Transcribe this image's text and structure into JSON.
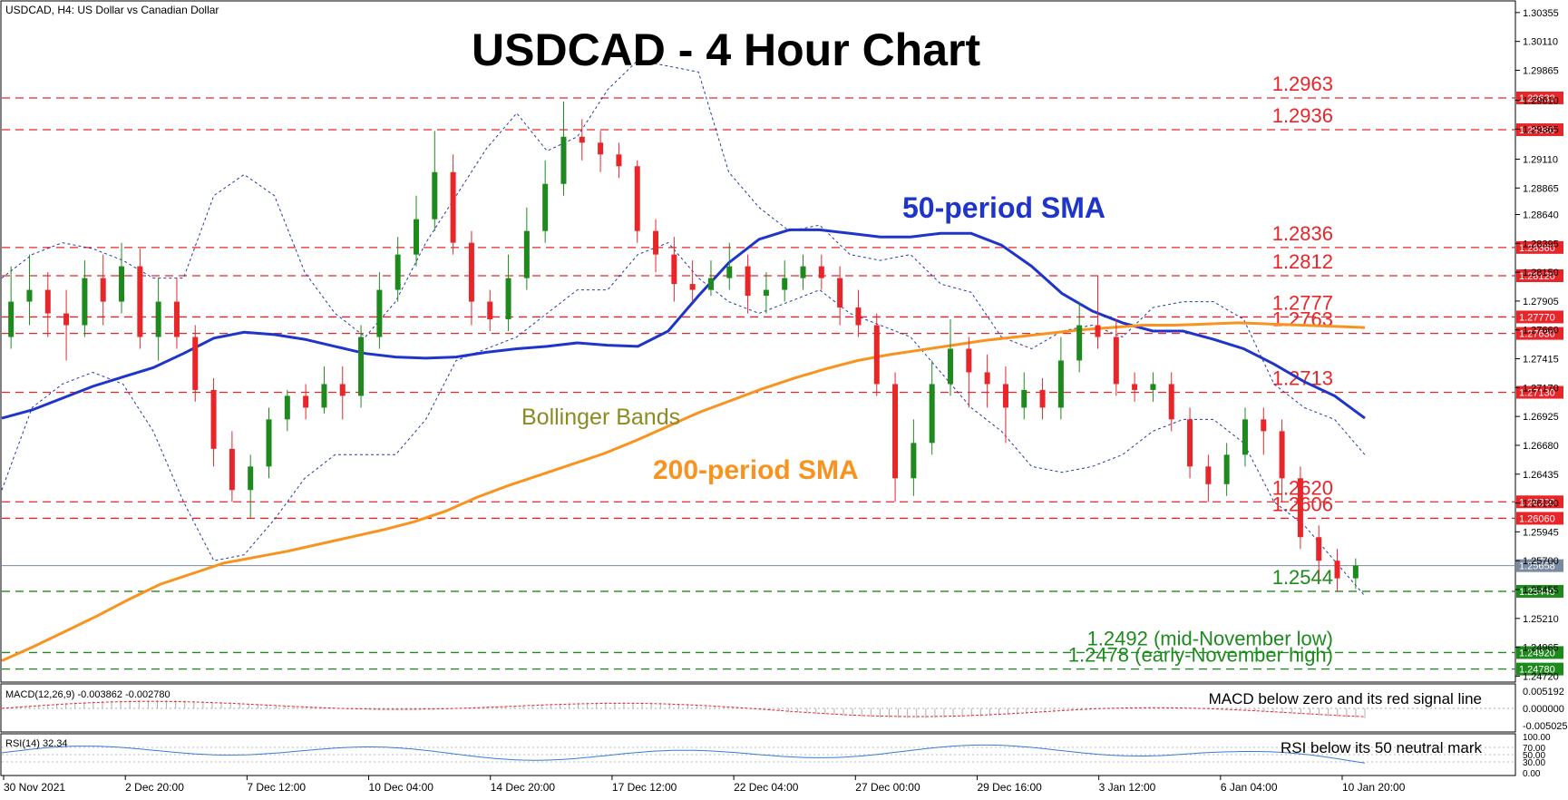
{
  "chart_data": {
    "type": "candlestick",
    "symbol_header": "USDCAD, H4:  US Dollar vs Canadian Dollar",
    "title": "USDCAD - 4 Hour Chart",
    "price_axis": {
      "min": 1.247,
      "max": 1.304,
      "ticks": [
        "1.30355",
        "1.30110",
        "1.29865",
        "1.29610",
        "1.29365",
        "1.29110",
        "1.28865",
        "1.28640",
        "1.28395",
        "1.28150",
        "1.27905",
        "1.27660",
        "1.27415",
        "1.27170",
        "1.26925",
        "1.26680",
        "1.26435",
        "1.26190",
        "1.25945",
        "1.25700",
        "1.25455",
        "1.25210",
        "1.24965",
        "1.24720"
      ]
    },
    "time_axis": {
      "labels": [
        "30 Nov 2021",
        "2 Dec 20:00",
        "7 Dec 12:00",
        "10 Dec 04:00",
        "14 Dec 20:00",
        "17 Dec 12:00",
        "22 Dec 04:00",
        "27 Dec 00:00",
        "29 Dec 16:00",
        "3 Jan 12:00",
        "6 Jan 04:00",
        "10 Jan 20:00"
      ]
    },
    "levels": [
      {
        "value": 1.2963,
        "text": "1.2963",
        "box": "1.29630",
        "color": "#e8262a",
        "style": "dashed"
      },
      {
        "value": 1.2936,
        "text": "1.2936",
        "box": "1.29360",
        "color": "#e8262a",
        "style": "dashed"
      },
      {
        "value": 1.2836,
        "text": "1.2836",
        "box": "1.28360",
        "color": "#e8262a",
        "style": "dashed"
      },
      {
        "value": 1.2812,
        "text": "1.2812",
        "box": "1.28120",
        "color": "#e8262a",
        "style": "dashed"
      },
      {
        "value": 1.2777,
        "text": "1.2777",
        "box": "1.27770",
        "color": "#e8262a",
        "style": "dashed"
      },
      {
        "value": 1.2763,
        "text": "1.2763",
        "box": "1.27630",
        "color": "#e8262a",
        "style": "dashed"
      },
      {
        "value": 1.2713,
        "text": "1.2713",
        "box": "1.27130",
        "color": "#e8262a",
        "style": "dashed"
      },
      {
        "value": 1.262,
        "text": "1.2620",
        "box": "1.26200",
        "color": "#e8262a",
        "style": "dashed"
      },
      {
        "value": 1.2606,
        "text": "1.2606",
        "box": "1.26060",
        "color": "#e8262a",
        "style": "dashed"
      },
      {
        "value": 1.2544,
        "text": "1.2544",
        "box": "1.25440",
        "color": "#1e8a1e",
        "style": "dashed"
      },
      {
        "value": 1.2492,
        "text": "1.2492 (mid-November low)",
        "box": "1.24920",
        "color": "#1e8a1e",
        "style": "dashed"
      },
      {
        "value": 1.2478,
        "text": "1.2478 (early-November high)",
        "box": "1.24780",
        "color": "#1e8a1e",
        "style": "dashed"
      }
    ],
    "current_price": {
      "value": 1.25658,
      "box": "1.25658"
    },
    "annotations": {
      "sma50": "50-period SMA",
      "sma200": "200-period SMA",
      "bollinger": "Bollinger Bands"
    },
    "series": [
      {
        "name": "50-period SMA",
        "color": "#1f35c9",
        "values": [
          1.2691,
          1.2698,
          1.2708,
          1.2718,
          1.2726,
          1.2734,
          1.2746,
          1.2759,
          1.2764,
          1.2762,
          1.2758,
          1.2752,
          1.2746,
          1.2743,
          1.2742,
          1.2743,
          1.2747,
          1.275,
          1.2752,
          1.2755,
          1.2753,
          1.2752,
          1.2765,
          1.2795,
          1.2823,
          1.2843,
          1.2851,
          1.2851,
          1.2848,
          1.2845,
          1.2845,
          1.2848,
          1.2848,
          1.2838,
          1.282,
          1.2797,
          1.2782,
          1.2772,
          1.2765,
          1.2765,
          1.2758,
          1.275,
          1.2737,
          1.2722,
          1.271,
          1.2691
        ]
      },
      {
        "name": "200-period SMA",
        "color": "#f7931e",
        "values": [
          1.2485,
          1.2497,
          1.251,
          1.2523,
          1.2537,
          1.255,
          1.2559,
          1.2568,
          1.2573,
          1.2578,
          1.2584,
          1.259,
          1.2596,
          1.2603,
          1.2612,
          1.2624,
          1.2634,
          1.2643,
          1.2652,
          1.2661,
          1.2672,
          1.2684,
          1.2696,
          1.2706,
          1.2716,
          1.2725,
          1.2733,
          1.274,
          1.2745,
          1.2749,
          1.2753,
          1.2757,
          1.276,
          1.2763,
          1.2766,
          1.2768,
          1.277,
          1.277,
          1.2771,
          1.2772,
          1.2771,
          1.277,
          1.2769,
          1.2768
        ]
      },
      {
        "name": "BB upper",
        "color": "#2438a8",
        "values": [
          1.281,
          1.283,
          1.284,
          1.2835,
          1.2825,
          1.281,
          1.281,
          1.288,
          1.2898,
          1.288,
          1.2815,
          1.278,
          1.276,
          1.279,
          1.284,
          1.288,
          1.292,
          1.295,
          1.2918,
          1.293,
          1.297,
          1.2995,
          1.299,
          1.2985,
          1.29,
          1.287,
          1.285,
          1.2855,
          1.283,
          1.2825,
          1.283,
          1.2805,
          1.2798,
          1.276,
          1.275,
          1.2765,
          1.277,
          1.276,
          1.2785,
          1.279,
          1.279,
          1.2775,
          1.272,
          1.27,
          1.269,
          1.266
        ]
      },
      {
        "name": "BB lower",
        "color": "#2438a8",
        "values": [
          1.263,
          1.27,
          1.272,
          1.273,
          1.272,
          1.268,
          1.262,
          1.257,
          1.2575,
          1.2605,
          1.264,
          1.266,
          1.266,
          1.266,
          1.269,
          1.274,
          1.275,
          1.276,
          1.278,
          1.28,
          1.28,
          1.283,
          1.284,
          1.281,
          1.279,
          1.278,
          1.279,
          1.28,
          1.278,
          1.277,
          1.276,
          1.273,
          1.27,
          1.268,
          1.265,
          1.2645,
          1.265,
          1.266,
          1.268,
          1.269,
          1.269,
          1.267,
          1.262,
          1.26,
          1.257,
          1.254
        ]
      }
    ],
    "candles": [
      [
        1.276,
        1.279,
        1.282,
        1.275
      ],
      [
        1.279,
        1.28,
        1.283,
        1.277
      ],
      [
        1.28,
        1.278,
        1.2815,
        1.276
      ],
      [
        1.278,
        1.277,
        1.28,
        1.274
      ],
      [
        1.277,
        1.281,
        1.2825,
        1.276
      ],
      [
        1.281,
        1.279,
        1.283,
        1.277
      ],
      [
        1.279,
        1.282,
        1.284,
        1.278
      ],
      [
        1.282,
        1.276,
        1.2835,
        1.275
      ],
      [
        1.276,
        1.279,
        1.281,
        1.274
      ],
      [
        1.279,
        1.276,
        1.281,
        1.275
      ],
      [
        1.276,
        1.2715,
        1.277,
        1.2705
      ],
      [
        1.2715,
        1.2665,
        1.2725,
        1.265
      ],
      [
        1.2665,
        1.263,
        1.268,
        1.262
      ],
      [
        1.263,
        1.265,
        1.266,
        1.2606
      ],
      [
        1.265,
        1.269,
        1.27,
        1.264
      ],
      [
        1.269,
        1.271,
        1.2715,
        1.268
      ],
      [
        1.271,
        1.27,
        1.272,
        1.269
      ],
      [
        1.27,
        1.272,
        1.2735,
        1.2695
      ],
      [
        1.272,
        1.271,
        1.2735,
        1.269
      ],
      [
        1.271,
        1.276,
        1.277,
        1.27
      ],
      [
        1.276,
        1.28,
        1.2815,
        1.275
      ],
      [
        1.28,
        1.283,
        1.2845,
        1.279
      ],
      [
        1.283,
        1.286,
        1.288,
        1.282
      ],
      [
        1.286,
        1.29,
        1.2935,
        1.285
      ],
      [
        1.29,
        1.284,
        1.2915,
        1.283
      ],
      [
        1.284,
        1.279,
        1.285,
        1.277
      ],
      [
        1.279,
        1.2775,
        1.28,
        1.2765
      ],
      [
        1.2775,
        1.281,
        1.283,
        1.2765
      ],
      [
        1.281,
        1.285,
        1.287,
        1.28
      ],
      [
        1.285,
        1.289,
        1.291,
        1.284
      ],
      [
        1.289,
        1.293,
        1.296,
        1.288
      ],
      [
        1.293,
        1.2925,
        1.2945,
        1.291
      ],
      [
        1.2925,
        1.2915,
        1.2935,
        1.29
      ],
      [
        1.2915,
        1.2905,
        1.2925,
        1.2895
      ],
      [
        1.2905,
        1.285,
        1.291,
        1.284
      ],
      [
        1.285,
        1.283,
        1.286,
        1.2815
      ],
      [
        1.283,
        1.2805,
        1.2845,
        1.279
      ],
      [
        1.2805,
        1.28,
        1.2825,
        1.279
      ],
      [
        1.28,
        1.281,
        1.2825,
        1.2795
      ],
      [
        1.281,
        1.282,
        1.284,
        1.28
      ],
      [
        1.282,
        1.2795,
        1.283,
        1.278
      ],
      [
        1.2795,
        1.28,
        1.2815,
        1.278
      ],
      [
        1.28,
        1.281,
        1.2825,
        1.279
      ],
      [
        1.281,
        1.282,
        1.283,
        1.28
      ],
      [
        1.282,
        1.281,
        1.283,
        1.28
      ],
      [
        1.281,
        1.2785,
        1.282,
        1.277
      ],
      [
        1.2785,
        1.277,
        1.28,
        1.276
      ],
      [
        1.277,
        1.272,
        1.278,
        1.271
      ],
      [
        1.272,
        1.264,
        1.273,
        1.262
      ],
      [
        1.264,
        1.267,
        1.269,
        1.2625
      ],
      [
        1.267,
        1.272,
        1.274,
        1.266
      ],
      [
        1.272,
        1.275,
        1.2775,
        1.271
      ],
      [
        1.275,
        1.273,
        1.276,
        1.27
      ],
      [
        1.273,
        1.272,
        1.2745,
        1.27
      ],
      [
        1.272,
        1.27,
        1.2735,
        1.267
      ],
      [
        1.27,
        1.2715,
        1.273,
        1.269
      ],
      [
        1.2715,
        1.27,
        1.2725,
        1.269
      ],
      [
        1.27,
        1.274,
        1.276,
        1.269
      ],
      [
        1.274,
        1.277,
        1.279,
        1.273
      ],
      [
        1.277,
        1.276,
        1.2812,
        1.275
      ],
      [
        1.276,
        1.272,
        1.2775,
        1.271
      ],
      [
        1.272,
        1.2715,
        1.273,
        1.2705
      ],
      [
        1.2715,
        1.272,
        1.273,
        1.2705
      ],
      [
        1.272,
        1.269,
        1.273,
        1.268
      ],
      [
        1.269,
        1.265,
        1.27,
        1.264
      ],
      [
        1.265,
        1.2635,
        1.266,
        1.262
      ],
      [
        1.2635,
        1.266,
        1.267,
        1.2625
      ],
      [
        1.266,
        1.269,
        1.27,
        1.265
      ],
      [
        1.269,
        1.268,
        1.27,
        1.266
      ],
      [
        1.268,
        1.264,
        1.269,
        1.262
      ],
      [
        1.264,
        1.259,
        1.265,
        1.258
      ],
      [
        1.259,
        1.257,
        1.26,
        1.2555
      ],
      [
        1.257,
        1.2555,
        1.258,
        1.2544
      ],
      [
        1.2555,
        1.2566,
        1.2572,
        1.2546
      ]
    ],
    "macd": {
      "label": "MACD(12,26,9) -0.003862 -0.002780",
      "ticks": [
        "0.005192",
        "0.000000",
        "-0.005025"
      ],
      "note": "MACD below zero and its red signal line"
    },
    "rsi": {
      "label": "RSI(14) 32.34",
      "ticks": [
        "100.00",
        "70.00",
        "50.00",
        "30.00",
        "0.00"
      ],
      "note": "RSI below its 50 neutral mark"
    },
    "colors": {
      "bull": "#1e8a1e",
      "bear": "#e8262a",
      "bb": "#2438a8",
      "sma50": "#1f35c9",
      "sma200": "#f7931e",
      "bollinger_text": "#8b8b22",
      "grid": "#9a9a9a"
    }
  }
}
